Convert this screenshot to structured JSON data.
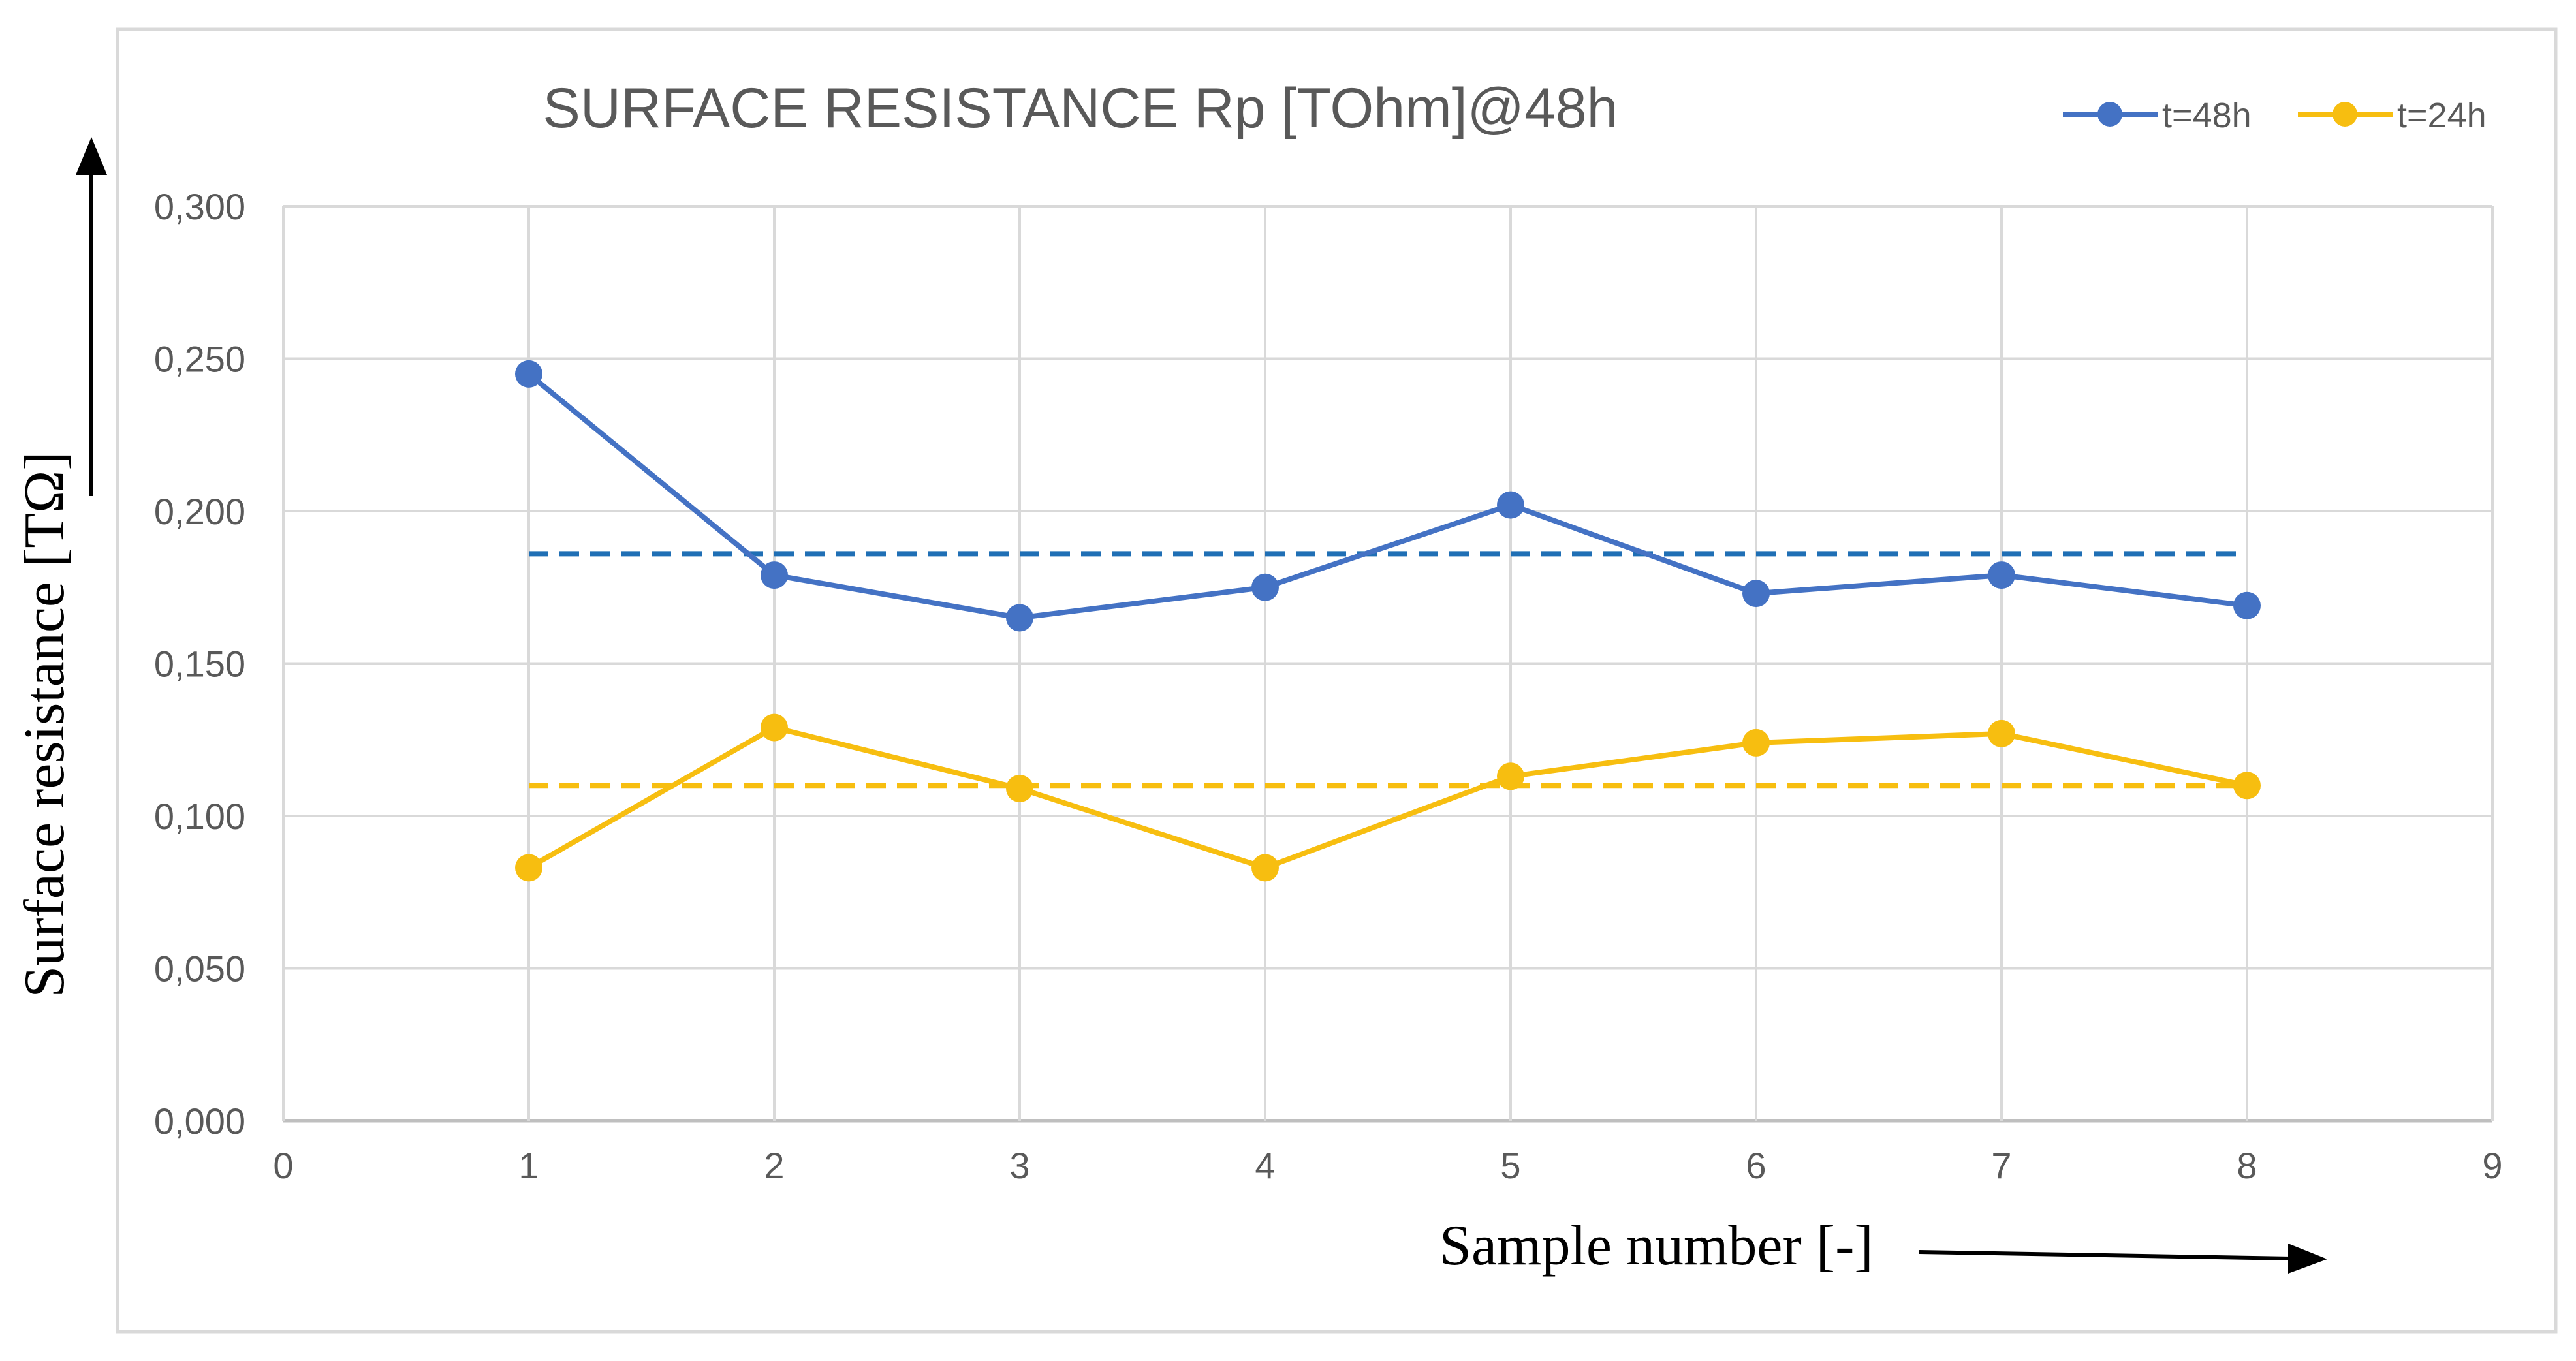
{
  "chart_data": {
    "type": "line",
    "title": "SURFACE RESISTANCE  Rp [TOhm]@48h",
    "xlabel": "Sample number [-]",
    "ylabel": "Surface resistance [TΩ]",
    "xlim": [
      0,
      9
    ],
    "ylim": [
      0,
      0.3
    ],
    "x_ticks": [
      "0",
      "1",
      "2",
      "3",
      "4",
      "5",
      "6",
      "7",
      "8",
      "9"
    ],
    "y_ticks": [
      "0,000",
      "0,050",
      "0,100",
      "0,150",
      "0,200",
      "0,250",
      "0,300"
    ],
    "grid": true,
    "legend_position": "top-right",
    "x": [
      1,
      2,
      3,
      4,
      5,
      6,
      7,
      8
    ],
    "series": [
      {
        "name": "t=48h",
        "color": "#4472C4",
        "values": [
          0.245,
          0.179,
          0.165,
          0.175,
          0.202,
          0.173,
          0.179,
          0.169
        ],
        "mean": 0.186,
        "mean_color": "#1F6FB5"
      },
      {
        "name": "t=24h",
        "color": "#F7BE10",
        "values": [
          0.083,
          0.129,
          0.109,
          0.083,
          0.113,
          0.124,
          0.127,
          0.11
        ],
        "mean": 0.11,
        "mean_color": "#F7BE10"
      }
    ]
  }
}
